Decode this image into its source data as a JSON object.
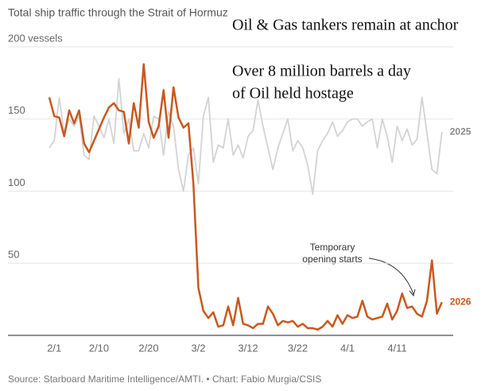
{
  "chart_data": {
    "type": "line",
    "title": "Total ship traffic through the Strait of Hormuz",
    "annotations": [
      "Oil & Gas tankers remain at anchor",
      "Over 8 million barrels a day",
      "of Oil held hostage"
    ],
    "callout": [
      "Temporary",
      "opening starts"
    ],
    "source": "Source: Starboard Maritime Intelligence/AMTI. • Chart: Fabio Murgia/CSIS",
    "categories": [
      null,
      "2/1",
      null,
      null,
      null,
      null,
      null,
      null,
      null,
      null,
      "2/10",
      null,
      null,
      null,
      null,
      null,
      null,
      null,
      null,
      null,
      "2/20",
      null,
      null,
      null,
      null,
      null,
      null,
      null,
      null,
      null,
      "3/2",
      null,
      null,
      null,
      null,
      null,
      null,
      null,
      null,
      null,
      "3/12",
      null,
      null,
      null,
      null,
      null,
      null,
      null,
      null,
      null,
      "3/22",
      null,
      null,
      null,
      null,
      null,
      null,
      null,
      null,
      null,
      "4/1",
      null,
      null,
      null,
      null,
      null,
      null,
      null,
      null,
      null,
      "4/11",
      null,
      null,
      null,
      null,
      null,
      null,
      null,
      null,
      null
    ],
    "series": [
      {
        "name": "2025",
        "color": "#d3d3d3",
        "values": [
          130,
          135,
          165,
          140,
          150,
          145,
          152,
          125,
          122,
          152,
          145,
          137,
          150,
          133,
          178,
          140,
          150,
          128,
          128,
          140,
          130,
          152,
          150,
          125,
          155,
          145,
          115,
          100,
          125,
          130,
          105,
          152,
          165,
          120,
          132,
          130,
          150,
          125,
          132,
          123,
          138,
          142,
          163,
          145,
          130,
          115,
          130,
          140,
          150,
          128,
          135,
          130,
          118,
          98,
          128,
          135,
          140,
          148,
          138,
          142,
          148,
          150,
          150,
          145,
          148,
          150,
          130,
          150,
          138,
          120,
          145,
          135,
          143,
          132,
          136,
          165,
          140,
          115,
          112,
          141
        ]
      },
      {
        "name": "2026",
        "color": "#c8581e",
        "values": [
          165,
          152,
          151,
          138,
          156,
          147,
          156,
          133,
          127,
          135,
          143,
          151,
          158,
          161,
          156,
          155,
          133,
          161,
          144,
          188,
          148,
          137,
          145,
          170,
          137,
          172,
          151,
          144,
          147,
          105,
          33,
          17,
          12,
          16,
          6,
          7,
          20,
          7,
          26,
          8,
          7,
          5,
          8,
          8,
          20,
          15,
          7,
          10,
          9,
          10,
          6,
          8,
          5,
          5,
          4,
          6,
          10,
          6,
          14,
          8,
          14,
          12,
          13,
          24,
          13,
          11,
          12,
          13,
          22,
          11,
          17,
          29,
          19,
          20,
          15,
          13,
          24,
          52,
          15,
          23
        ]
      }
    ],
    "ylim": [
      0,
      200
    ],
    "yticks": [
      50,
      100,
      150,
      {
        "value": 200,
        "label": "200 vessels"
      }
    ],
    "grid": true
  }
}
